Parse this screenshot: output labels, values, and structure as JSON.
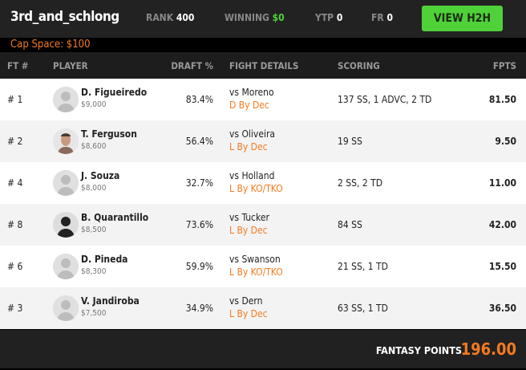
{
  "header": {
    "team": "3rd_and_schlong",
    "rank_label": "RANK",
    "rank": "400",
    "winning_label": "WINNING",
    "winning": "$0",
    "ytp_label": "YTP",
    "ytp": "0",
    "fr_label": "FR",
    "fr": "0",
    "h2h_button": "VIEW H2H",
    "accent": "#4fd13a"
  },
  "cap_space": "Cap Space: $100",
  "columns": {
    "ft": "FT #",
    "player": "PLAYER",
    "draft": "DRAFT %",
    "fight": "FIGHT DETAILS",
    "scoring": "SCORING",
    "fpts": "FPTS"
  },
  "rows": [
    {
      "ft": "# 1",
      "name": "D. Figueiredo",
      "salary": "$9,000",
      "draft": "83.4%",
      "vs": "vs Moreno",
      "result": "D By Dec",
      "scoring": "137 SS, 1 ADVC, 2 TD",
      "fpts": "81.50",
      "avatar": "placeholder"
    },
    {
      "ft": "# 2",
      "name": "T. Ferguson",
      "salary": "$8,600",
      "draft": "56.4%",
      "vs": "vs Oliveira",
      "result": "L By Dec",
      "scoring": "19 SS",
      "fpts": "9.50",
      "avatar": "photo"
    },
    {
      "ft": "# 4",
      "name": "J. Souza",
      "salary": "$8,000",
      "draft": "32.7%",
      "vs": "vs Holland",
      "result": "L By KO/TKO",
      "scoring": "2 SS, 2 TD",
      "fpts": "11.00",
      "avatar": "placeholder"
    },
    {
      "ft": "# 8",
      "name": "B. Quarantillo",
      "salary": "$8,500",
      "draft": "73.6%",
      "vs": "vs Tucker",
      "result": "L By Dec",
      "scoring": "84 SS",
      "fpts": "42.00",
      "avatar": "silhouette"
    },
    {
      "ft": "# 6",
      "name": "D. Pineda",
      "salary": "$8,300",
      "draft": "59.9%",
      "vs": "vs Swanson",
      "result": "L By KO/TKO",
      "scoring": "21 SS, 1 TD",
      "fpts": "15.50",
      "avatar": "placeholder"
    },
    {
      "ft": "# 3",
      "name": "V. Jandiroba",
      "salary": "$7,500",
      "draft": "34.9%",
      "vs": "vs Dern",
      "result": "L By Dec",
      "scoring": "63 SS, 1 TD",
      "fpts": "36.50",
      "avatar": "placeholder"
    }
  ],
  "footer": {
    "label": "FANTASY POINTS",
    "value": "196.00",
    "accent": "#f47a20"
  }
}
